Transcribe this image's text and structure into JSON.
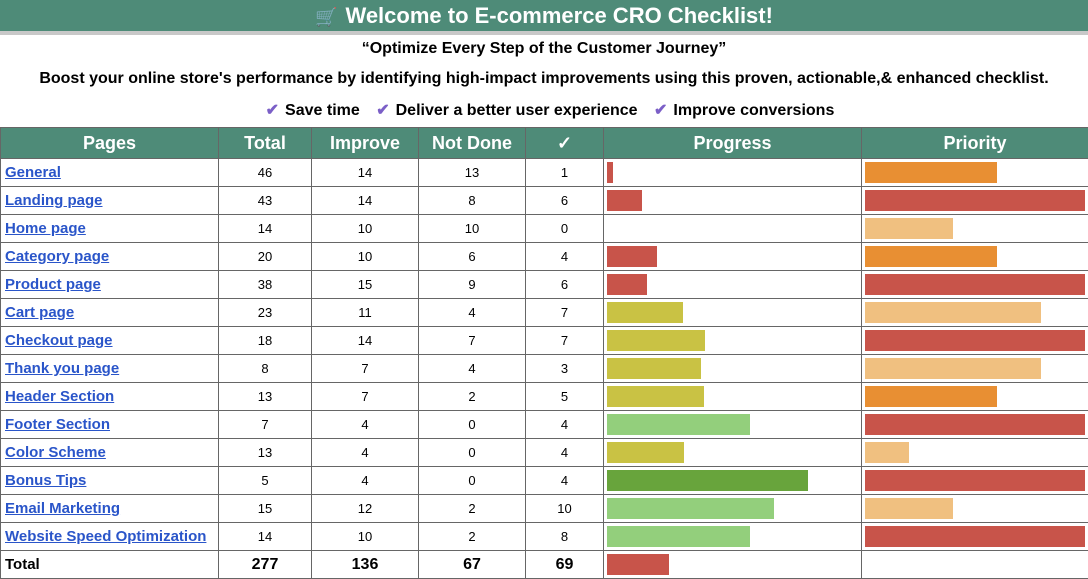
{
  "title": "Welcome to E-commerce CRO Checklist!",
  "title_icon": "shopping-cart-icon",
  "tagline": "“Optimize Every Step of the Customer Journey”",
  "description": "Boost your online store's performance by identifying high-impact improvements using this proven, actionable,& enhanced checklist.",
  "benefits": [
    "Save time",
    "Deliver a better user experience",
    "Improve conversions"
  ],
  "colors": {
    "header": "#4e8b78",
    "link": "#2a55c9",
    "red": "#c8544a",
    "olive": "#c9c244",
    "lightgreen": "#93cf7c",
    "darkgreen": "#68a43c",
    "orange": "#e88f33",
    "lightorange": "#f0c080"
  },
  "columns": [
    "Pages",
    "Total",
    "Improve",
    "Not Done",
    "✓",
    "Progress",
    "Priority"
  ],
  "rows": [
    {
      "page": "General",
      "total": "46",
      "improve": "14",
      "not_done": "13",
      "done": "1",
      "progress": 0.022,
      "priority": 3
    },
    {
      "page": "Landing page",
      "total": "43",
      "improve": "14",
      "not_done": "8",
      "done": "6",
      "progress": 0.14,
      "priority": 5
    },
    {
      "page": "Home page",
      "total": "14",
      "improve": "10",
      "not_done": "10",
      "done": "0",
      "progress": 0,
      "priority": 2
    },
    {
      "page": "Category page",
      "total": "20",
      "improve": "10",
      "not_done": "6",
      "done": "4",
      "progress": 0.2,
      "priority": 3
    },
    {
      "page": "Product page",
      "total": "38",
      "improve": "15",
      "not_done": "9",
      "done": "6",
      "progress": 0.158,
      "priority": 5
    },
    {
      "page": "Cart page",
      "total": "23",
      "improve": "11",
      "not_done": "4",
      "done": "7",
      "progress": 0.304,
      "priority": 4
    },
    {
      "page": "Checkout page",
      "total": "18",
      "improve": "14",
      "not_done": "7",
      "done": "7",
      "progress": 0.389,
      "priority": 5
    },
    {
      "page": "Thank you page",
      "total": "8",
      "improve": "7",
      "not_done": "4",
      "done": "3",
      "progress": 0.375,
      "priority": 4
    },
    {
      "page": "Header Section",
      "total": "13",
      "improve": "7",
      "not_done": "2",
      "done": "5",
      "progress": 0.385,
      "priority": 3
    },
    {
      "page": "Footer Section",
      "total": "7",
      "improve": "4",
      "not_done": "0",
      "done": "4",
      "progress": 0.571,
      "priority": 5
    },
    {
      "page": "Color Scheme",
      "total": "13",
      "improve": "4",
      "not_done": "0",
      "done": "4",
      "progress": 0.308,
      "priority": 1
    },
    {
      "page": "Bonus Tips",
      "total": "5",
      "improve": "4",
      "not_done": "0",
      "done": "4",
      "progress": 0.8,
      "priority": 5
    },
    {
      "page": "Email Marketing",
      "total": "15",
      "improve": "12",
      "not_done": "2",
      "done": "10",
      "progress": 0.667,
      "priority": 2
    },
    {
      "page": "Website Speed Optimization",
      "total": "14",
      "improve": "10",
      "not_done": "2",
      "done": "8",
      "progress": 0.571,
      "priority": 5
    }
  ],
  "totals": {
    "label": "Total",
    "total": "277",
    "improve": "136",
    "not_done": "67",
    "done": "69",
    "progress": 0.249
  }
}
